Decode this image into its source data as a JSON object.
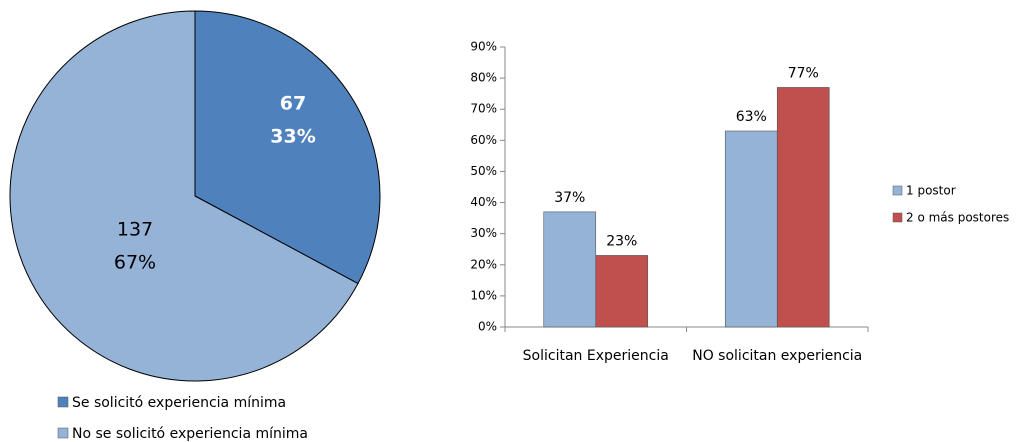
{
  "chart_data": [
    {
      "type": "pie",
      "categories": [
        "Se solicitó experiencia mínima",
        "No se solicitó experiencia mínima"
      ],
      "values": [
        67,
        137
      ],
      "percent_labels": [
        "33%",
        "67%"
      ],
      "colors": [
        "#4f81bd",
        "#95b3d7"
      ],
      "legend": "bottom"
    },
    {
      "type": "bar",
      "categories": [
        "Solicitan Experiencia",
        "NO solicitan experiencia"
      ],
      "series": [
        {
          "name": "1 postor",
          "color": "#95b3d7",
          "values": [
            37,
            63
          ],
          "value_labels": [
            "37%",
            "63%"
          ]
        },
        {
          "name": "2 o más postores",
          "color": "#c0504d",
          "values": [
            23,
            77
          ],
          "value_labels": [
            "23%",
            "77%"
          ]
        }
      ],
      "ylim": [
        0,
        90
      ],
      "yticks": [
        {
          "value": 0,
          "label": "0%"
        },
        {
          "value": 10,
          "label": "10%"
        },
        {
          "value": 20,
          "label": "20%"
        },
        {
          "value": 30,
          "label": "30%"
        },
        {
          "value": 40,
          "label": "40%"
        },
        {
          "value": 50,
          "label": "50%"
        },
        {
          "value": 60,
          "label": "60%"
        },
        {
          "value": 70,
          "label": "70%"
        },
        {
          "value": 80,
          "label": "80%"
        },
        {
          "value": 90,
          "label": "90%"
        }
      ],
      "legend": "right"
    }
  ]
}
